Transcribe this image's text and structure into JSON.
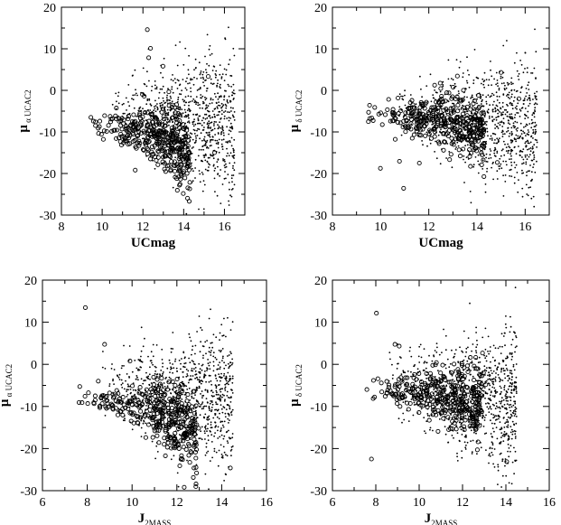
{
  "chart_data": [
    {
      "type": "scatter",
      "panel": "top-left",
      "xlabel": "UCmag",
      "ylabel_main": "μ",
      "ylabel_sub": "α UCAC2",
      "xlim": [
        8,
        17
      ],
      "ylim": [
        -30,
        20
      ],
      "xticks": [
        8,
        10,
        12,
        14,
        16
      ],
      "yticks": [
        -30,
        -20,
        -10,
        0,
        10,
        20
      ],
      "trend_small": [
        [
          10.5,
          -3
        ],
        [
          11.5,
          -5
        ],
        [
          12.5,
          -6
        ],
        [
          13.5,
          -7
        ],
        [
          14.5,
          -7.5
        ],
        [
          15.5,
          -8
        ],
        [
          16.5,
          -8.5
        ]
      ],
      "spread_small": [
        3,
        4,
        5,
        6,
        7,
        8,
        9
      ],
      "trend_large": [
        [
          9.3,
          -8
        ],
        [
          10.2,
          -8.5
        ],
        [
          11.2,
          -9
        ],
        [
          12.2,
          -10
        ],
        [
          13.0,
          -12
        ],
        [
          13.8,
          -15
        ],
        [
          14.3,
          -17
        ]
      ],
      "spread_large": [
        1.5,
        2,
        2,
        3,
        4,
        5,
        5
      ],
      "grid": false
    },
    {
      "type": "scatter",
      "panel": "top-right",
      "xlabel": "UCmag",
      "ylabel_main": "μ",
      "ylabel_sub": "δ UCAC2",
      "xlim": [
        8,
        17
      ],
      "ylim": [
        -30,
        20
      ],
      "xticks": [
        8,
        10,
        12,
        14,
        16
      ],
      "yticks": [
        -30,
        -20,
        -10,
        0,
        10,
        20
      ],
      "trend_small": [
        [
          10.5,
          -4
        ],
        [
          11.5,
          -5
        ],
        [
          12.5,
          -6
        ],
        [
          13.5,
          -7
        ],
        [
          14.5,
          -8
        ],
        [
          15.5,
          -9
        ],
        [
          16.5,
          -9.5
        ]
      ],
      "spread_small": [
        3,
        4,
        5,
        6,
        7,
        8,
        9
      ],
      "trend_large": [
        [
          9.3,
          -5
        ],
        [
          10.2,
          -6
        ],
        [
          11.2,
          -6.5
        ],
        [
          12.2,
          -7
        ],
        [
          13.0,
          -8
        ],
        [
          13.8,
          -9
        ],
        [
          14.3,
          -10
        ]
      ],
      "spread_large": [
        1.5,
        1.5,
        2,
        3,
        4,
        4,
        4
      ],
      "grid": false
    },
    {
      "type": "scatter",
      "panel": "bottom-left",
      "xlabel_main": "J",
      "xlabel_sub": "2MASS",
      "ylabel_main": "μ",
      "ylabel_sub": "α UCAC2",
      "xlim": [
        6,
        16
      ],
      "ylim": [
        -30,
        20
      ],
      "xticks": [
        6,
        8,
        10,
        12,
        14,
        16
      ],
      "yticks": [
        -30,
        -20,
        -10,
        0,
        10,
        20
      ],
      "trend_small": [
        [
          8.5,
          -3
        ],
        [
          9.5,
          -5
        ],
        [
          10.5,
          -6
        ],
        [
          11.5,
          -7
        ],
        [
          12.5,
          -7.5
        ],
        [
          13.5,
          -8
        ],
        [
          14.5,
          -8.5
        ]
      ],
      "spread_small": [
        3,
        4,
        5,
        6,
        7,
        8,
        9
      ],
      "trend_large": [
        [
          7.3,
          -8
        ],
        [
          8.3,
          -8.5
        ],
        [
          9.5,
          -9
        ],
        [
          10.7,
          -10
        ],
        [
          11.6,
          -12
        ],
        [
          12.3,
          -15
        ],
        [
          12.9,
          -17
        ]
      ],
      "spread_large": [
        1.5,
        2,
        2,
        3,
        4,
        5,
        5
      ],
      "grid": false
    },
    {
      "type": "scatter",
      "panel": "bottom-right",
      "xlabel_main": "J",
      "xlabel_sub": "2MASS",
      "ylabel_main": "μ",
      "ylabel_sub": "δ UCAC2",
      "xlim": [
        6,
        16
      ],
      "ylim": [
        -30,
        20
      ],
      "xticks": [
        6,
        8,
        10,
        12,
        14,
        16
      ],
      "yticks": [
        -30,
        -20,
        -10,
        0,
        10,
        20
      ],
      "trend_small": [
        [
          8.5,
          -4
        ],
        [
          9.5,
          -5
        ],
        [
          10.5,
          -6
        ],
        [
          11.5,
          -7
        ],
        [
          12.5,
          -8
        ],
        [
          13.5,
          -9
        ],
        [
          14.5,
          -9.5
        ]
      ],
      "spread_small": [
        3,
        4,
        5,
        6,
        7,
        8,
        9
      ],
      "trend_large": [
        [
          7.3,
          -5
        ],
        [
          8.3,
          -6
        ],
        [
          9.5,
          -6.5
        ],
        [
          10.7,
          -7
        ],
        [
          11.6,
          -8
        ],
        [
          12.3,
          -9
        ],
        [
          12.9,
          -10
        ]
      ],
      "spread_large": [
        1.5,
        1.5,
        2,
        3,
        4,
        4,
        4
      ],
      "grid": false
    }
  ]
}
